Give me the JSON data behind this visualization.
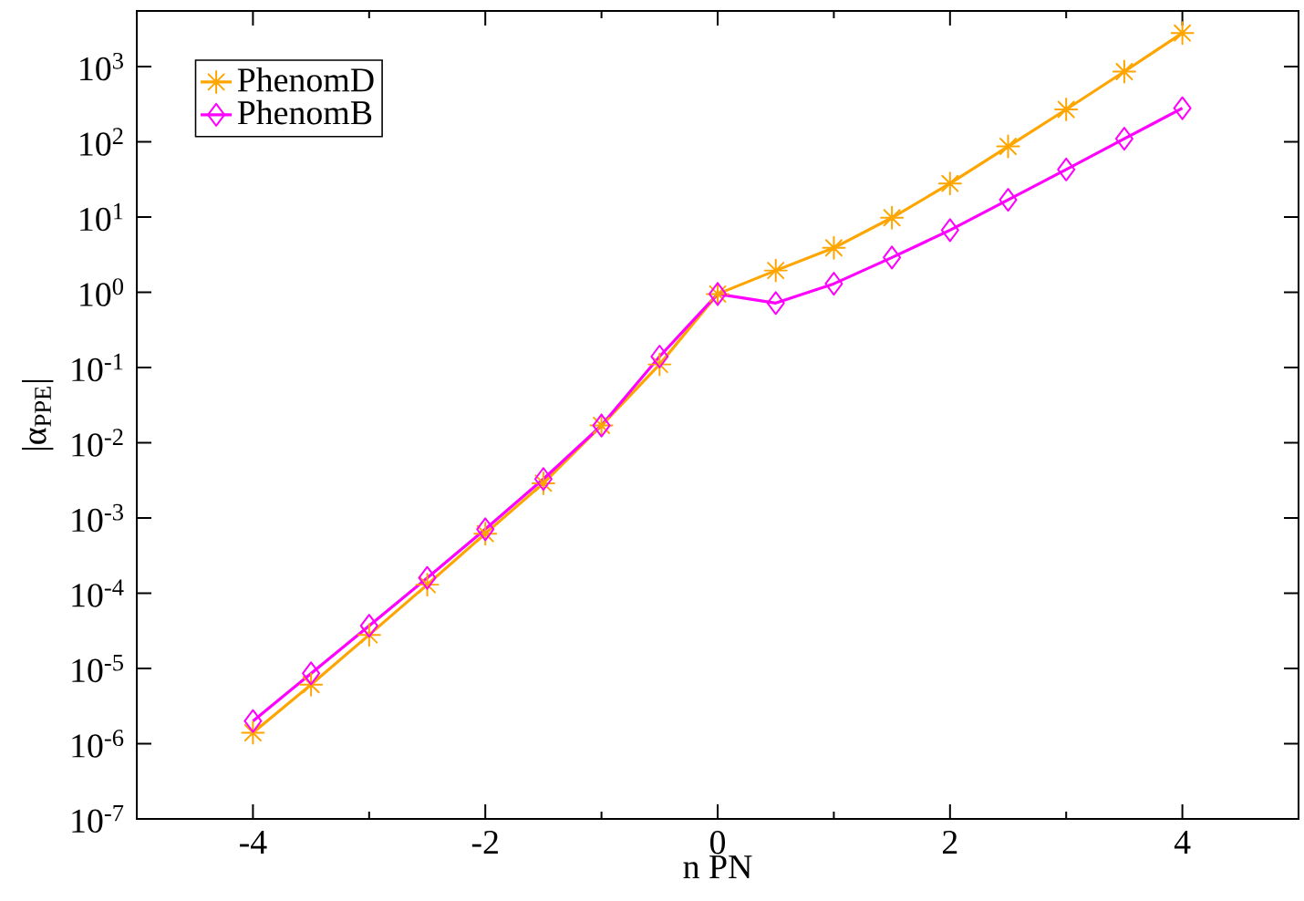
{
  "chart_data": {
    "type": "line",
    "xlabel": "n PN",
    "ylabel": "|α$_{PPE}$|",
    "log": "y",
    "legend": "top left",
    "grid": false,
    "line_style": "solid",
    "x": [
      -4,
      -3.5,
      -3,
      -2.5,
      -2,
      -1.5,
      -1,
      -0.5,
      0,
      0.5,
      1,
      1.5,
      2,
      2.5,
      3,
      3.5,
      4
    ],
    "series": [
      {
        "name": "PhenomD",
        "color": "#ffa500",
        "marker": "star",
        "values": [
          1.4e-06,
          6.1e-06,
          2.8e-05,
          0.00013,
          0.00062,
          0.0029,
          0.017,
          0.11,
          0.95,
          1.95,
          3.9,
          9.8,
          28,
          87,
          270,
          860,
          2800
        ]
      },
      {
        "name": "PhenomB",
        "color": "#ff00ff",
        "marker": "diamond",
        "values": [
          2e-06,
          8.6e-06,
          3.7e-05,
          0.00016,
          0.00071,
          0.0033,
          0.017,
          0.14,
          0.95,
          0.72,
          1.3,
          2.9,
          6.7,
          17,
          43,
          110,
          280
        ]
      }
    ],
    "xlim": [
      -5,
      5
    ],
    "ylim": [
      1e-07,
      5500
    ],
    "xticks": [
      -4,
      -2,
      0,
      2,
      4
    ],
    "yticks": [
      {
        "value": 1e-07,
        "label": "10$^{-7}$"
      },
      {
        "value": 1e-06,
        "label": "10$^{-6}$"
      },
      {
        "value": 1e-05,
        "label": "10$^{-5}$"
      },
      {
        "value": 0.0001,
        "label": "10$^{-4}$"
      },
      {
        "value": 0.001,
        "label": "10$^{-3}$"
      },
      {
        "value": 0.01,
        "label": "10$^{-2}$"
      },
      {
        "value": 0.1,
        "label": "10$^{-1}$"
      },
      {
        "value": 1,
        "label": "10$^{0}$"
      },
      {
        "value": 10,
        "label": "10$^{1}$"
      },
      {
        "value": 100,
        "label": "10$^{2}$"
      },
      {
        "value": 1000,
        "label": "10$^{3}$"
      }
    ]
  }
}
